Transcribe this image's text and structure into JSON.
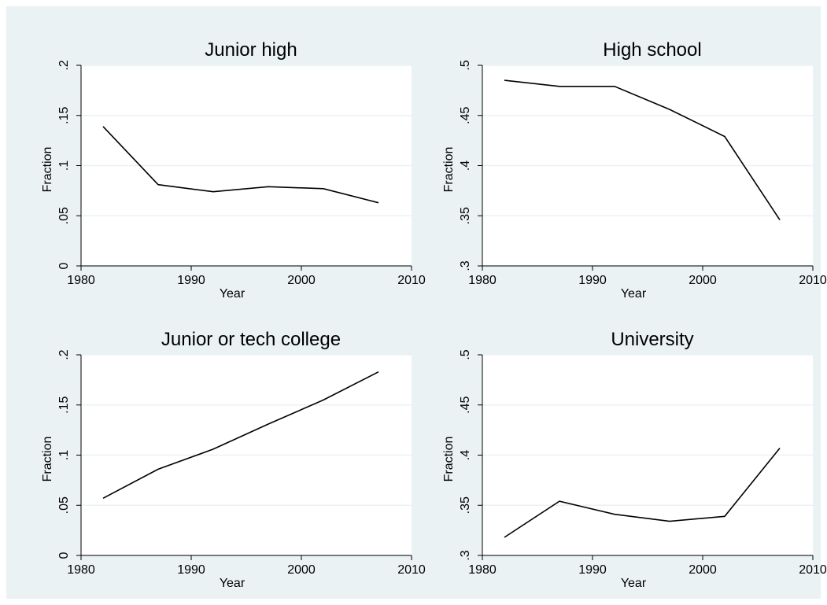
{
  "chart_data": [
    {
      "type": "line",
      "title": "Junior high",
      "xlabel": "Year",
      "ylabel": "Fraction",
      "xlim": [
        1980,
        2010
      ],
      "ylim": [
        0,
        0.2
      ],
      "xticks": [
        1980,
        1990,
        2000,
        2010
      ],
      "xtick_labels": [
        "1980",
        "1990",
        "2000",
        "2010"
      ],
      "yticks": [
        0,
        0.05,
        0.1,
        0.15,
        0.2
      ],
      "ytick_labels": [
        "0",
        ".05",
        ".1",
        ".15",
        ".2"
      ],
      "grid": true,
      "x": [
        1982,
        1987,
        1992,
        1997,
        2002,
        2007
      ],
      "values": [
        0.139,
        0.081,
        0.074,
        0.079,
        0.077,
        0.063
      ]
    },
    {
      "type": "line",
      "title": "High school",
      "xlabel": "Year",
      "ylabel": "Fraction",
      "xlim": [
        1980,
        2010
      ],
      "ylim": [
        0.3,
        0.5
      ],
      "xticks": [
        1980,
        1990,
        2000,
        2010
      ],
      "xtick_labels": [
        "1980",
        "1990",
        "2000",
        "2010"
      ],
      "yticks": [
        0.3,
        0.35,
        0.4,
        0.45,
        0.5
      ],
      "ytick_labels": [
        ".3",
        ".35",
        ".4",
        ".45",
        ".5"
      ],
      "grid": true,
      "x": [
        1982,
        1987,
        1992,
        1997,
        2002,
        2007
      ],
      "values": [
        0.485,
        0.479,
        0.479,
        0.456,
        0.429,
        0.346
      ]
    },
    {
      "type": "line",
      "title": "Junior or tech college",
      "xlabel": "Year",
      "ylabel": "Fraction",
      "xlim": [
        1980,
        2010
      ],
      "ylim": [
        0,
        0.2
      ],
      "xticks": [
        1980,
        1990,
        2000,
        2010
      ],
      "xtick_labels": [
        "1980",
        "1990",
        "2000",
        "2010"
      ],
      "yticks": [
        0,
        0.05,
        0.1,
        0.15,
        0.2
      ],
      "ytick_labels": [
        "0",
        ".05",
        ".1",
        ".15",
        ".2"
      ],
      "grid": true,
      "x": [
        1982,
        1987,
        1992,
        1997,
        2002,
        2007
      ],
      "values": [
        0.057,
        0.086,
        0.106,
        0.131,
        0.155,
        0.183
      ]
    },
    {
      "type": "line",
      "title": "University",
      "xlabel": "Year",
      "ylabel": "Fraction",
      "xlim": [
        1980,
        2010
      ],
      "ylim": [
        0.3,
        0.5
      ],
      "xticks": [
        1980,
        1990,
        2000,
        2010
      ],
      "xtick_labels": [
        "1980",
        "1990",
        "2000",
        "2010"
      ],
      "yticks": [
        0.3,
        0.35,
        0.4,
        0.45,
        0.5
      ],
      "ytick_labels": [
        ".3",
        ".35",
        ".4",
        ".45",
        ".5"
      ],
      "grid": true,
      "x": [
        1982,
        1987,
        1992,
        1997,
        2002,
        2007
      ],
      "values": [
        0.318,
        0.354,
        0.341,
        0.334,
        0.339,
        0.407
      ]
    }
  ]
}
